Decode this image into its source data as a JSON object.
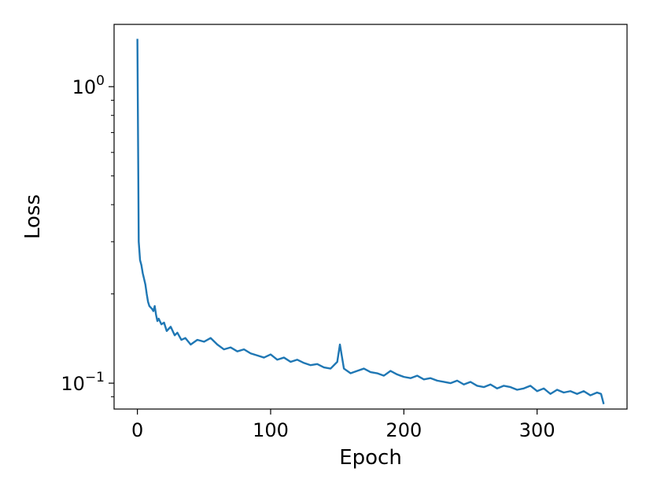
{
  "chart_data": {
    "type": "line",
    "title": "",
    "xlabel": "Epoch",
    "ylabel": "Loss",
    "xlim": [
      -17.5,
      367.5
    ],
    "ylim": [
      0.0818,
      1.622
    ],
    "yscale": "log",
    "grid": false,
    "legend": "none",
    "x_ticks": [
      0,
      100,
      200,
      300
    ],
    "y_major_ticks": [
      {
        "value": 1.0,
        "base": "10",
        "exp": "0"
      },
      {
        "value": 0.1,
        "base": "10",
        "exp": "−1"
      }
    ],
    "y_minor_ticks": [
      0.09,
      0.2,
      0.3,
      0.4,
      0.5,
      0.6,
      0.7,
      0.8,
      0.9
    ],
    "series": [
      {
        "color": "#1f77b4",
        "x": [
          0,
          1,
          2,
          3,
          4,
          5,
          6,
          7,
          8,
          9,
          10,
          11,
          12,
          13,
          14,
          15,
          16,
          18,
          20,
          22,
          25,
          28,
          30,
          33,
          36,
          40,
          45,
          50,
          55,
          60,
          65,
          70,
          75,
          80,
          85,
          90,
          95,
          100,
          105,
          110,
          115,
          120,
          125,
          130,
          135,
          140,
          145,
          150,
          152,
          155,
          160,
          165,
          170,
          175,
          180,
          185,
          190,
          195,
          200,
          205,
          210,
          215,
          220,
          225,
          230,
          235,
          240,
          245,
          250,
          255,
          260,
          265,
          270,
          275,
          280,
          285,
          290,
          295,
          300,
          305,
          310,
          315,
          320,
          325,
          330,
          335,
          340,
          345,
          348,
          350
        ],
        "y": [
          1.45,
          0.3,
          0.26,
          0.25,
          0.235,
          0.225,
          0.215,
          0.2,
          0.188,
          0.182,
          0.18,
          0.178,
          0.175,
          0.182,
          0.17,
          0.162,
          0.165,
          0.158,
          0.16,
          0.15,
          0.155,
          0.145,
          0.148,
          0.14,
          0.142,
          0.135,
          0.14,
          0.138,
          0.142,
          0.135,
          0.13,
          0.132,
          0.128,
          0.13,
          0.126,
          0.124,
          0.122,
          0.125,
          0.12,
          0.122,
          0.118,
          0.12,
          0.117,
          0.115,
          0.116,
          0.113,
          0.112,
          0.118,
          0.135,
          0.112,
          0.108,
          0.11,
          0.112,
          0.109,
          0.108,
          0.106,
          0.11,
          0.107,
          0.105,
          0.104,
          0.106,
          0.103,
          0.104,
          0.102,
          0.101,
          0.1,
          0.102,
          0.099,
          0.101,
          0.098,
          0.097,
          0.099,
          0.096,
          0.098,
          0.097,
          0.095,
          0.096,
          0.098,
          0.094,
          0.096,
          0.092,
          0.095,
          0.093,
          0.094,
          0.092,
          0.094,
          0.091,
          0.093,
          0.092,
          0.085
        ]
      }
    ]
  }
}
